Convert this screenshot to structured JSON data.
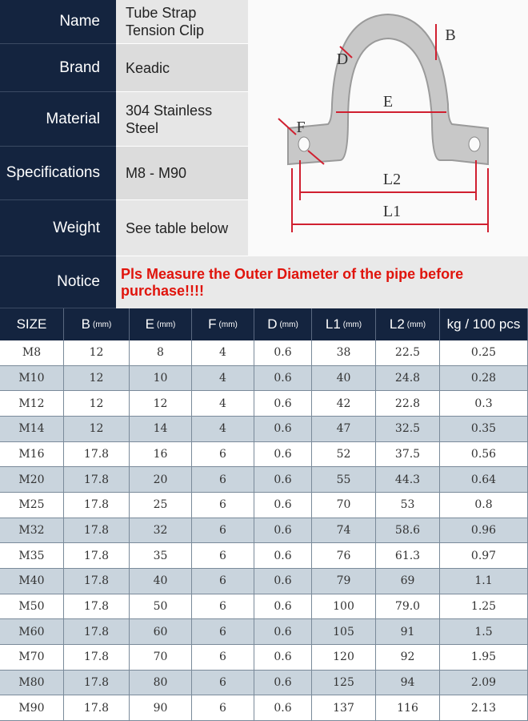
{
  "specs": [
    {
      "label": "Name",
      "value": [
        "Tube Strap",
        "Tension Clip"
      ]
    },
    {
      "label": "Brand",
      "value": [
        "Keadic"
      ]
    },
    {
      "label": "Material",
      "value": [
        "304 Stainless Steel"
      ]
    },
    {
      "label": "Specifications",
      "value": [
        "M8 - M90"
      ]
    },
    {
      "label": "Weight",
      "value": [
        "See table below"
      ]
    }
  ],
  "notice": {
    "label": "Notice",
    "value": "Pls Measure the Outer Diameter of the pipe before purchase!!!!"
  },
  "diagram": {
    "labels": [
      "B",
      "D",
      "E",
      "F",
      "L2",
      "L1"
    ]
  },
  "table": {
    "header": [
      {
        "name": "SIZE"
      },
      {
        "name": "B",
        "unit": "(mm)"
      },
      {
        "name": "E",
        "unit": "(mm)"
      },
      {
        "name": "F",
        "unit": "(mm)"
      },
      {
        "name": "D",
        "unit": "(mm)"
      },
      {
        "name": "L1",
        "unit": "(mm)"
      },
      {
        "name": "L2",
        "unit": "(mm)"
      },
      {
        "name": "kg / 100 pcs"
      }
    ],
    "rows": [
      [
        "M8",
        "12",
        "8",
        "4",
        "0.6",
        "38",
        "22.5",
        "0.25"
      ],
      [
        "M10",
        "12",
        "10",
        "4",
        "0.6",
        "40",
        "24.8",
        "0.28"
      ],
      [
        "M12",
        "12",
        "12",
        "4",
        "0.6",
        "42",
        "22.8",
        "0.3"
      ],
      [
        "M14",
        "12",
        "14",
        "4",
        "0.6",
        "47",
        "32.5",
        "0.35"
      ],
      [
        "M16",
        "17.8",
        "16",
        "6",
        "0.6",
        "52",
        "37.5",
        "0.56"
      ],
      [
        "M20",
        "17.8",
        "20",
        "6",
        "0.6",
        "55",
        "44.3",
        "0.64"
      ],
      [
        "M25",
        "17.8",
        "25",
        "6",
        "0.6",
        "70",
        "53",
        "0.8"
      ],
      [
        "M32",
        "17.8",
        "32",
        "6",
        "0.6",
        "74",
        "58.6",
        "0.96"
      ],
      [
        "M35",
        "17.8",
        "35",
        "6",
        "0.6",
        "76",
        "61.3",
        "0.97"
      ],
      [
        "M40",
        "17.8",
        "40",
        "6",
        "0.6",
        "79",
        "69",
        "1.1"
      ],
      [
        "M50",
        "17.8",
        "50",
        "6",
        "0.6",
        "100",
        "79.0",
        "1.25"
      ],
      [
        "M60",
        "17.8",
        "60",
        "6",
        "0.6",
        "105",
        "91",
        "1.5"
      ],
      [
        "M70",
        "17.8",
        "70",
        "6",
        "0.6",
        "120",
        "92",
        "1.95"
      ],
      [
        "M80",
        "17.8",
        "80",
        "6",
        "0.6",
        "125",
        "94",
        "2.09"
      ],
      [
        "M90",
        "17.8",
        "90",
        "6",
        "0.6",
        "137",
        "116",
        "2.13"
      ]
    ]
  }
}
